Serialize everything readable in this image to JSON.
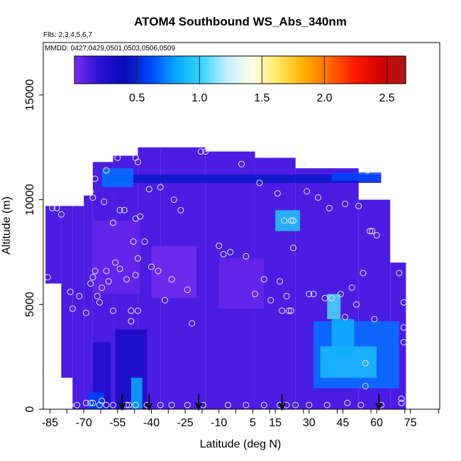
{
  "chart_data": {
    "type": "heatmap",
    "title": "ATOM4 Southbound WS_Abs_340nm",
    "flights_note": "Flts: 2,3,4,5,6,7",
    "dates_note": "MMDD: 0427,0429,0501,0503,0506,0509",
    "xlabel": "Latitude (deg N)",
    "ylabel": "Altitude (m)",
    "xlim": [
      -88,
      88
    ],
    "ylim": [
      0,
      17500
    ],
    "x_ticks": [
      -85,
      -70,
      -55,
      -40,
      -25,
      -10,
      5,
      15,
      30,
      45,
      60,
      75
    ],
    "x_tick_labels": [
      "-85",
      "-70",
      "-55",
      "-40",
      "-25",
      "-10",
      "5",
      "15",
      "30",
      "45",
      "60",
      "75"
    ],
    "y_ticks": [
      0,
      5000,
      10000,
      15000
    ],
    "y_tick_labels": [
      "0",
      "5000",
      "10000",
      "15000"
    ],
    "colorbar": {
      "min": 0.0,
      "max": 2.65,
      "ticks": [
        0.5,
        1.0,
        1.5,
        2.0,
        2.5
      ],
      "tick_labels": [
        "0.5",
        "1.0",
        "1.5",
        "2.0",
        "2.5"
      ],
      "colors": [
        "#7b2ef0",
        "#2a0fd6",
        "#0a0ab8",
        "#0048ff",
        "#0aa8ff",
        "#35d6ff",
        "#c8f0ff",
        "#fffde6",
        "#ffe860",
        "#ffb000",
        "#ff6a00",
        "#ff1a00",
        "#d40000",
        "#a81818"
      ]
    },
    "profile_markers_lat": [
      -53,
      -41,
      -19,
      18,
      61
    ],
    "coverage": [
      {
        "lat": [
          -87,
          -80
        ],
        "alt": [
          6000,
          9700
        ]
      },
      {
        "lat": [
          -80,
          -75
        ],
        "alt": [
          1500,
          9700
        ]
      },
      {
        "lat": [
          -75,
          -70
        ],
        "alt": [
          0,
          9700
        ]
      },
      {
        "lat": [
          -70,
          -66
        ],
        "alt": [
          0,
          10200
        ]
      },
      {
        "lat": [
          -66,
          -57
        ],
        "alt": [
          0,
          11800
        ]
      },
      {
        "lat": [
          -57,
          -46
        ],
        "alt": [
          0,
          12100
        ]
      },
      {
        "lat": [
          -46,
          -36
        ],
        "alt": [
          0,
          12500
        ]
      },
      {
        "lat": [
          -36,
          -16
        ],
        "alt": [
          0,
          12500
        ]
      },
      {
        "lat": [
          -16,
          6
        ],
        "alt": [
          0,
          12300
        ]
      },
      {
        "lat": [
          6,
          24
        ],
        "alt": [
          0,
          12000
        ]
      },
      {
        "lat": [
          24,
          52
        ],
        "alt": [
          0,
          11500
        ]
      },
      {
        "lat": [
          52,
          66
        ],
        "alt": [
          0,
          10000
        ]
      },
      {
        "lat": [
          66,
          73
        ],
        "alt": [
          0,
          7000
        ]
      }
    ],
    "features": [
      {
        "lat": [
          -66,
          -58
        ],
        "alt": [
          0,
          3200
        ],
        "value": 0.28
      },
      {
        "lat": [
          -56,
          -42
        ],
        "alt": [
          0,
          3800
        ],
        "value": 0.33
      },
      {
        "lat": [
          -49,
          -44
        ],
        "alt": [
          0,
          1500
        ],
        "value": 0.82
      },
      {
        "lat": [
          -68,
          -61
        ],
        "alt": [
          0,
          800
        ],
        "value": 0.6
      },
      {
        "lat": [
          -66,
          -45
        ],
        "alt": [
          5500,
          9000
        ],
        "value": 0.05
      },
      {
        "lat": [
          -40,
          -20
        ],
        "alt": [
          5300,
          7800
        ],
        "value": 0.02
      },
      {
        "lat": [
          -10,
          10
        ],
        "alt": [
          4800,
          7200
        ],
        "value": 0.05
      },
      {
        "lat": [
          15,
          26
        ],
        "alt": [
          8500,
          9500
        ],
        "value": 0.95
      },
      {
        "lat": [
          32,
          70
        ],
        "alt": [
          1000,
          4200
        ],
        "value": 0.7
      },
      {
        "lat": [
          35,
          60
        ],
        "alt": [
          1500,
          3000
        ],
        "value": 0.9
      },
      {
        "lat": [
          38,
          44
        ],
        "alt": [
          4300,
          5500
        ],
        "value": 1.05
      },
      {
        "lat": [
          40,
          50
        ],
        "alt": [
          2500,
          4300
        ],
        "value": 0.85
      },
      {
        "lat": [
          -60,
          62
        ],
        "alt": [
          10800,
          11200
        ],
        "value": 0.45
      },
      {
        "lat": [
          -62,
          -48
        ],
        "alt": [
          10600,
          11500
        ],
        "value": 0.7
      },
      {
        "lat": [
          40,
          62
        ],
        "alt": [
          10900,
          11300
        ],
        "value": 0.6
      }
    ],
    "observations": [
      {
        "lat": -86,
        "alt": 6300
      },
      {
        "lat": -84,
        "alt": 9600
      },
      {
        "lat": -82,
        "alt": 9600
      },
      {
        "lat": -80,
        "alt": 9300
      },
      {
        "lat": -76,
        "alt": 5600
      },
      {
        "lat": -75,
        "alt": 4800
      },
      {
        "lat": -72,
        "alt": 5400
      },
      {
        "lat": -69,
        "alt": 4600
      },
      {
        "lat": -67,
        "alt": 6000
      },
      {
        "lat": -67,
        "alt": 10400
      },
      {
        "lat": -66,
        "alt": 10100
      },
      {
        "lat": -66,
        "alt": 6300
      },
      {
        "lat": -65,
        "alt": 6600
      },
      {
        "lat": -65,
        "alt": 11000
      },
      {
        "lat": -64,
        "alt": 5400
      },
      {
        "lat": -63,
        "alt": 5100
      },
      {
        "lat": -62,
        "alt": 5800
      },
      {
        "lat": -61,
        "alt": 9900
      },
      {
        "lat": -60,
        "alt": 11400
      },
      {
        "lat": -60,
        "alt": 6600
      },
      {
        "lat": -59,
        "alt": 6100
      },
      {
        "lat": -57,
        "alt": 4700
      },
      {
        "lat": -57,
        "alt": 8900
      },
      {
        "lat": -56,
        "alt": 7000
      },
      {
        "lat": -55,
        "alt": 12000
      },
      {
        "lat": -54,
        "alt": 9500
      },
      {
        "lat": -54,
        "alt": 6700
      },
      {
        "lat": -52,
        "alt": 9500
      },
      {
        "lat": -51,
        "alt": 6200
      },
      {
        "lat": -49,
        "alt": 4700
      },
      {
        "lat": -49,
        "alt": 4200
      },
      {
        "lat": -48,
        "alt": 8000
      },
      {
        "lat": -47,
        "alt": 9100
      },
      {
        "lat": -47,
        "alt": 6400
      },
      {
        "lat": -47,
        "alt": 12000
      },
      {
        "lat": -46,
        "alt": 11800
      },
      {
        "lat": -46,
        "alt": 4700
      },
      {
        "lat": -46,
        "alt": 7200
      },
      {
        "lat": -45,
        "alt": 9200
      },
      {
        "lat": -43,
        "alt": 8000
      },
      {
        "lat": -41,
        "alt": 10500
      },
      {
        "lat": -40,
        "alt": 6800
      },
      {
        "lat": -37,
        "alt": 6600
      },
      {
        "lat": -36,
        "alt": 10600
      },
      {
        "lat": -34,
        "alt": 5200
      },
      {
        "lat": -31,
        "alt": 6200
      },
      {
        "lat": -30,
        "alt": 10000
      },
      {
        "lat": -27,
        "alt": 9500
      },
      {
        "lat": -24,
        "alt": 5700
      },
      {
        "lat": -22,
        "alt": 4100
      },
      {
        "lat": -18,
        "alt": 12300
      },
      {
        "lat": -16,
        "alt": 12300
      },
      {
        "lat": -10,
        "alt": 7800
      },
      {
        "lat": -8,
        "alt": 7400
      },
      {
        "lat": -5,
        "alt": 7500
      },
      {
        "lat": 0,
        "alt": 11700
      },
      {
        "lat": 2,
        "alt": 7300
      },
      {
        "lat": 6,
        "alt": 5500
      },
      {
        "lat": 8,
        "alt": 10800
      },
      {
        "lat": 10,
        "alt": 6200
      },
      {
        "lat": 13,
        "alt": 5200
      },
      {
        "lat": 16,
        "alt": 10300
      },
      {
        "lat": 17,
        "alt": 6100
      },
      {
        "lat": 18,
        "alt": 4700
      },
      {
        "lat": 19,
        "alt": 9000
      },
      {
        "lat": 20,
        "alt": 5400
      },
      {
        "lat": 21,
        "alt": 4700
      },
      {
        "lat": 22,
        "alt": 9000
      },
      {
        "lat": 22,
        "alt": 4700
      },
      {
        "lat": 23,
        "alt": 7700
      },
      {
        "lat": 23,
        "alt": 9000
      },
      {
        "lat": 27,
        "alt": 11700
      },
      {
        "lat": 29,
        "alt": 10400
      },
      {
        "lat": 30,
        "alt": 5500
      },
      {
        "lat": 32,
        "alt": 5500
      },
      {
        "lat": 34,
        "alt": 10100
      },
      {
        "lat": 37,
        "alt": 5300
      },
      {
        "lat": 39,
        "alt": 9600
      },
      {
        "lat": 40,
        "alt": 5300
      },
      {
        "lat": 44,
        "alt": 5500
      },
      {
        "lat": 46,
        "alt": 9800
      },
      {
        "lat": 46,
        "alt": 4400
      },
      {
        "lat": 49,
        "alt": 5800
      },
      {
        "lat": 51,
        "alt": 5000
      },
      {
        "lat": 52,
        "alt": 9700
      },
      {
        "lat": 54,
        "alt": 6500
      },
      {
        "lat": 55,
        "alt": 2200
      },
      {
        "lat": 55,
        "alt": 1100
      },
      {
        "lat": 56,
        "alt": 11400
      },
      {
        "lat": 57,
        "alt": 8500
      },
      {
        "lat": 58,
        "alt": 8500
      },
      {
        "lat": 59,
        "alt": 4300
      },
      {
        "lat": 60,
        "alt": 8300
      },
      {
        "lat": 70,
        "alt": 6500
      },
      {
        "lat": 72,
        "alt": 5100
      },
      {
        "lat": 72,
        "alt": 3900
      },
      {
        "lat": 72,
        "alt": 3200
      },
      {
        "lat": 71,
        "alt": 500
      },
      {
        "lat": 71,
        "alt": 300
      },
      {
        "lat": -76,
        "alt": 200
      },
      {
        "lat": -73,
        "alt": 200
      },
      {
        "lat": -69,
        "alt": 300
      },
      {
        "lat": -67,
        "alt": 300
      },
      {
        "lat": -66,
        "alt": 300
      },
      {
        "lat": -63,
        "alt": 200
      },
      {
        "lat": -62,
        "alt": 400
      },
      {
        "lat": -60,
        "alt": 200
      },
      {
        "lat": -57,
        "alt": 200
      },
      {
        "lat": -51,
        "alt": 200
      },
      {
        "lat": -50,
        "alt": 200
      },
      {
        "lat": -47,
        "alt": 200
      },
      {
        "lat": -42,
        "alt": 200
      },
      {
        "lat": -36,
        "alt": 200
      },
      {
        "lat": -31,
        "alt": 200
      },
      {
        "lat": -24,
        "alt": 200
      },
      {
        "lat": -17,
        "alt": 200
      },
      {
        "lat": -6,
        "alt": 200
      },
      {
        "lat": 2,
        "alt": 200
      },
      {
        "lat": 10,
        "alt": 200
      },
      {
        "lat": 17,
        "alt": 200
      },
      {
        "lat": 20,
        "alt": 200
      },
      {
        "lat": 24,
        "alt": 200
      },
      {
        "lat": 30,
        "alt": 200
      },
      {
        "lat": 38,
        "alt": 200
      },
      {
        "lat": 47,
        "alt": 300
      },
      {
        "lat": 53,
        "alt": 200
      },
      {
        "lat": 62,
        "alt": 200
      }
    ]
  }
}
